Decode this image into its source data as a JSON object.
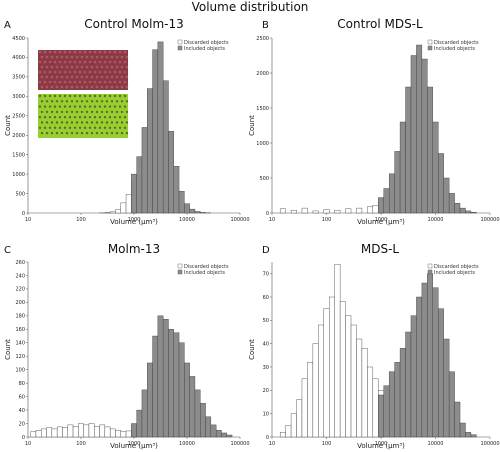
{
  "figure_title": "Volume distribution",
  "legend": {
    "discarded": "Discarded objects",
    "included": "Included objects"
  },
  "x_tick_labels": [
    "10",
    "100",
    "1000",
    "10000",
    "100000"
  ],
  "colors": {
    "discarded_fill": "#ffffff",
    "included_fill": "#8c8c8c",
    "bar_stroke": "#3a3a3a",
    "image_red": "#8b3a45",
    "image_green": "#9acd32"
  },
  "chart_data": [
    {
      "panel": "A",
      "type": "bar",
      "title": "Control Molm-13",
      "xlabel": "Volume (µm³)",
      "ylabel": "Count",
      "xscale": "log",
      "xlim": [
        10,
        100000
      ],
      "ylim": [
        0,
        4500
      ],
      "yticks": [
        0,
        500,
        1000,
        1500,
        2000,
        2500,
        3000,
        3500,
        4000,
        4500
      ],
      "inset_images": 2,
      "series": [
        {
          "name": "Discarded objects",
          "log10_center": [
            2.4,
            2.5,
            2.6,
            2.7,
            2.8,
            2.9,
            3.0
          ],
          "values": [
            3,
            12,
            30,
            90,
            260,
            480,
            800
          ]
        },
        {
          "name": "Included objects",
          "log10_center": [
            3.0,
            3.1,
            3.2,
            3.3,
            3.4,
            3.5,
            3.6,
            3.7,
            3.8,
            3.9,
            4.0,
            4.1,
            4.2,
            4.3,
            4.4
          ],
          "values": [
            1000,
            1450,
            2200,
            3200,
            4200,
            4400,
            3400,
            2100,
            1200,
            560,
            240,
            100,
            40,
            15,
            5
          ]
        }
      ]
    },
    {
      "panel": "B",
      "type": "bar",
      "title": "Control MDS-L",
      "xlabel": "Volume (µm³)",
      "ylabel": "Count",
      "xscale": "log",
      "xlim": [
        10,
        100000
      ],
      "ylim": [
        0,
        2500
      ],
      "yticks": [
        0,
        500,
        1000,
        1500,
        2000,
        2500
      ],
      "series": [
        {
          "name": "Discarded objects",
          "log10_center": [
            1.2,
            1.4,
            1.6,
            1.8,
            2.0,
            2.2,
            2.4,
            2.6,
            2.8,
            2.9,
            3.0
          ],
          "values": [
            60,
            40,
            70,
            30,
            50,
            40,
            60,
            70,
            90,
            110,
            150
          ]
        },
        {
          "name": "Included objects",
          "log10_center": [
            3.0,
            3.1,
            3.2,
            3.3,
            3.4,
            3.5,
            3.6,
            3.7,
            3.8,
            3.9,
            4.0,
            4.1,
            4.2,
            4.3,
            4.4,
            4.5,
            4.6,
            4.7
          ],
          "values": [
            220,
            350,
            560,
            880,
            1300,
            1800,
            2250,
            2400,
            2200,
            1800,
            1300,
            850,
            500,
            280,
            140,
            70,
            30,
            10
          ]
        }
      ]
    },
    {
      "panel": "C",
      "type": "bar",
      "title": "Molm-13",
      "xlabel": "Volume (µm³)",
      "ylabel": "Count",
      "xscale": "log",
      "xlim": [
        10,
        100000
      ],
      "ylim": [
        0,
        260
      ],
      "yticks": [
        0,
        20,
        40,
        60,
        80,
        100,
        120,
        140,
        160,
        180,
        200,
        220,
        240,
        260
      ],
      "series": [
        {
          "name": "Discarded objects",
          "log10_center": [
            1.1,
            1.2,
            1.3,
            1.4,
            1.5,
            1.6,
            1.7,
            1.8,
            1.9,
            2.0,
            2.1,
            2.2,
            2.3,
            2.4,
            2.5,
            2.6,
            2.7,
            2.8,
            2.9,
            3.0
          ],
          "values": [
            8,
            10,
            12,
            14,
            12,
            15,
            14,
            18,
            16,
            20,
            18,
            20,
            16,
            18,
            15,
            12,
            10,
            8,
            9,
            10
          ]
        },
        {
          "name": "Included objects",
          "log10_center": [
            3.0,
            3.1,
            3.2,
            3.3,
            3.4,
            3.5,
            3.6,
            3.7,
            3.8,
            3.9,
            4.0,
            4.1,
            4.2,
            4.3,
            4.4,
            4.5,
            4.6,
            4.7,
            4.8
          ],
          "values": [
            20,
            40,
            70,
            110,
            150,
            180,
            175,
            160,
            155,
            140,
            110,
            90,
            70,
            50,
            30,
            18,
            10,
            6,
            3
          ]
        }
      ]
    },
    {
      "panel": "D",
      "type": "bar",
      "title": "MDS-L",
      "xlabel": "Volume (µm³)",
      "ylabel": "Count",
      "xscale": "log",
      "xlim": [
        10,
        100000
      ],
      "ylim": [
        0,
        75
      ],
      "yticks": [
        0,
        10,
        20,
        30,
        40,
        50,
        60,
        70
      ],
      "series": [
        {
          "name": "Discarded objects",
          "log10_center": [
            1.2,
            1.3,
            1.4,
            1.5,
            1.6,
            1.7,
            1.8,
            1.9,
            2.0,
            2.1,
            2.2,
            2.3,
            2.4,
            2.5,
            2.6,
            2.7,
            2.8,
            2.9,
            3.0
          ],
          "values": [
            2,
            5,
            10,
            16,
            25,
            32,
            40,
            48,
            55,
            60,
            74,
            58,
            52,
            48,
            42,
            38,
            30,
            25,
            20
          ]
        },
        {
          "name": "Included objects",
          "log10_center": [
            3.0,
            3.1,
            3.2,
            3.3,
            3.4,
            3.5,
            3.6,
            3.7,
            3.8,
            3.9,
            4.0,
            4.1,
            4.2,
            4.3,
            4.4,
            4.5,
            4.6,
            4.7
          ],
          "values": [
            18,
            22,
            28,
            32,
            38,
            45,
            52,
            60,
            66,
            70,
            64,
            55,
            42,
            28,
            15,
            6,
            2,
            1
          ]
        }
      ]
    }
  ]
}
